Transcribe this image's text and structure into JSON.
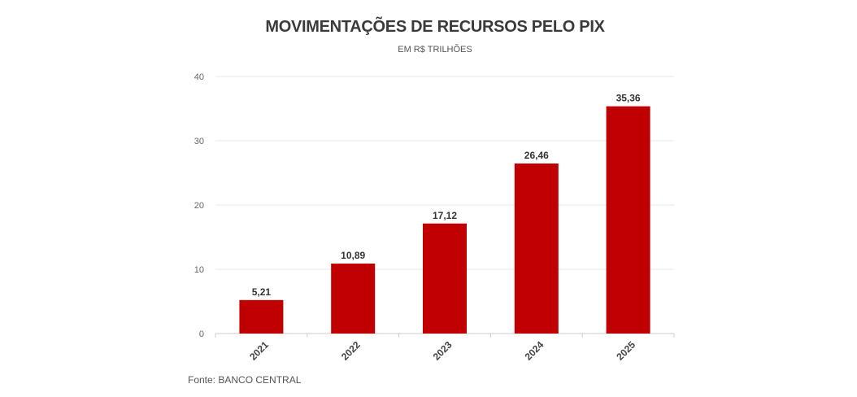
{
  "chart_data": {
    "type": "bar",
    "title": "MOVIMENTAÇÕES DE RECURSOS PELO PIX",
    "subtitle": "EM R$ TRILHÕES",
    "categories": [
      "2021",
      "2022",
      "2023",
      "2024",
      "2025"
    ],
    "values": [
      5.21,
      10.89,
      17.12,
      26.46,
      35.36
    ],
    "value_labels": [
      "5,21",
      "10,89",
      "17,12",
      "26,46",
      "35,36"
    ],
    "xlabel": "",
    "ylabel": "",
    "ylim": [
      0,
      40
    ],
    "yticks": [
      0,
      10,
      20,
      30,
      40
    ],
    "grid": true,
    "bar_color": "#c00000",
    "grid_color": "#e8e8e8"
  },
  "source": "Fonte: BANCO CENTRAL"
}
